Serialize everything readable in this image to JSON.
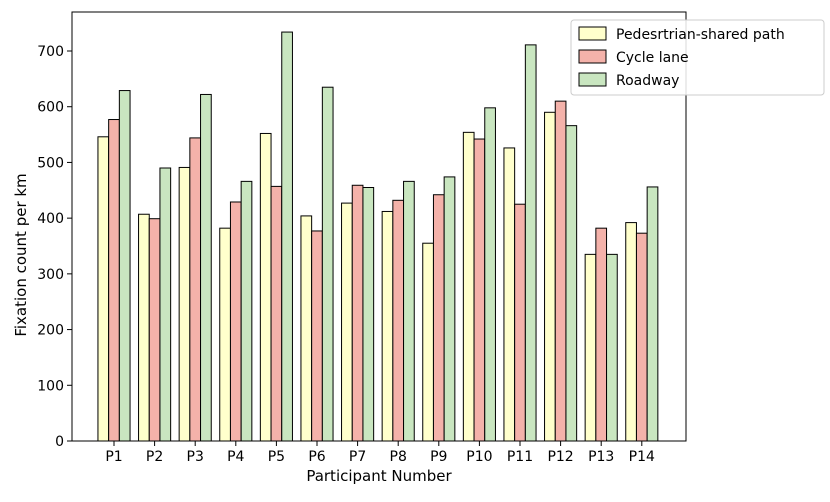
{
  "chart_data": {
    "type": "bar",
    "title": "",
    "xlabel": "Participant Number",
    "ylabel": "Fixation count per km",
    "categories": [
      "P1",
      "P2",
      "P3",
      "P4",
      "P5",
      "P6",
      "P7",
      "P8",
      "P9",
      "P10",
      "P11",
      "P12",
      "P13",
      "P14"
    ],
    "ylim": [
      0,
      770
    ],
    "yticks": [
      0,
      100,
      200,
      300,
      400,
      500,
      600,
      700
    ],
    "grid": false,
    "legend_position": "top-right",
    "series": [
      {
        "name": "Pedesrtrian-shared path",
        "color": "#ffffcc",
        "values": [
          546,
          407,
          491,
          382,
          552,
          404,
          427,
          412,
          355,
          554,
          526,
          590,
          335,
          392
        ]
      },
      {
        "name": "Cycle lane",
        "color": "#f4b2aa",
        "values": [
          577,
          399,
          544,
          429,
          457,
          377,
          459,
          432,
          442,
          542,
          425,
          610,
          382,
          373
        ]
      },
      {
        "name": "Roadway",
        "color": "#c9e6c0",
        "values": [
          629,
          490,
          622,
          466,
          734,
          635,
          455,
          466,
          474,
          598,
          711,
          566,
          335,
          456
        ]
      }
    ]
  }
}
